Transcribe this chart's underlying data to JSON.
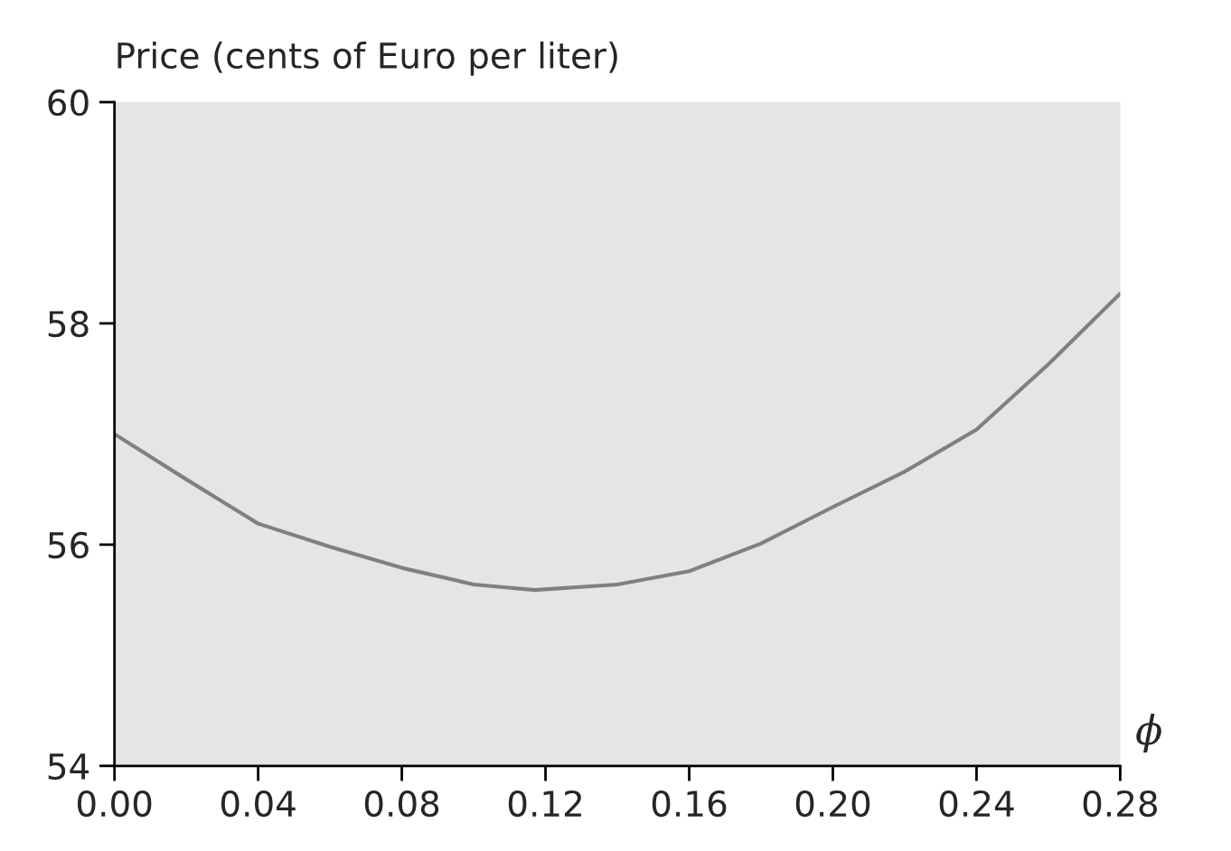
{
  "chart_data": {
    "type": "line",
    "ylabel": "Price (cents of Euro per liter)",
    "xlabel": "ϕ",
    "x": [
      0.0,
      0.02,
      0.04,
      0.06,
      0.08,
      0.1,
      0.117,
      0.14,
      0.16,
      0.18,
      0.2,
      0.22,
      0.24,
      0.26,
      0.28
    ],
    "series": [
      {
        "color": "#808080",
        "values": [
          57.0,
          56.59,
          56.19,
          55.98,
          55.79,
          55.64,
          55.59,
          55.64,
          55.76,
          56.01,
          56.34,
          56.66,
          57.04,
          57.63,
          58.27
        ]
      }
    ],
    "xlim": [
      0.0,
      0.28
    ],
    "xticks": [
      {
        "value": 0.0,
        "label": "0.00"
      },
      0.04,
      0.08,
      0.12,
      0.16,
      {
        "value": 0.2,
        "label": "0.20"
      },
      0.24,
      0.28
    ],
    "ylim": [
      54,
      60
    ],
    "yticks": [
      54,
      56,
      58,
      60
    ],
    "grid": false,
    "legend": false,
    "marker": "none",
    "line_style": "solid"
  }
}
